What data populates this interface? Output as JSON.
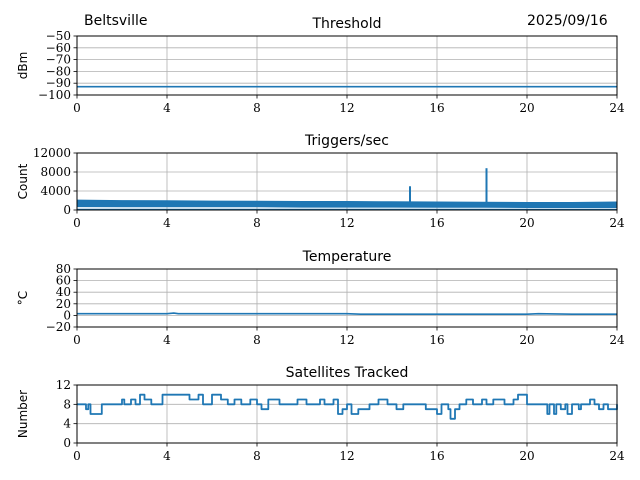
{
  "header": {
    "location": "Beltsville",
    "date": "2025/09/16"
  },
  "chart_data": [
    {
      "type": "line",
      "title": "Threshold",
      "xlabel": "",
      "ylabel": "dBm",
      "xlim": [
        0,
        24
      ],
      "ylim": [
        -100,
        -50
      ],
      "xticks": [
        0,
        4,
        8,
        12,
        16,
        20,
        24
      ],
      "yticks": [
        -100,
        -90,
        -80,
        -70,
        -60,
        -50
      ],
      "ytick_labels": [
        "−100",
        "−90",
        "−80",
        "−70",
        "−60",
        "−50"
      ],
      "grid": true,
      "series": [
        {
          "color": "#1f77b4",
          "x": [
            0,
            2,
            4,
            6,
            8,
            10,
            12,
            14,
            16,
            18,
            20,
            22,
            24
          ],
          "y": [
            -93,
            -93,
            -93,
            -93,
            -93,
            -93,
            -93,
            -93,
            -93,
            -93,
            -93,
            -93,
            -93
          ]
        }
      ]
    },
    {
      "type": "line",
      "title": "Triggers/sec",
      "xlabel": "",
      "ylabel": "Count",
      "xlim": [
        0,
        24
      ],
      "ylim": [
        0,
        12000
      ],
      "xticks": [
        0,
        4,
        8,
        12,
        16,
        20,
        24
      ],
      "yticks": [
        0,
        4000,
        8000,
        12000
      ],
      "ytick_labels": [
        "0",
        "4000",
        "8000",
        "12000"
      ],
      "grid": true,
      "band": {
        "x": [
          0,
          2,
          4,
          6,
          8,
          10,
          12,
          14,
          16,
          18,
          20,
          22,
          24
        ],
        "low": [
          700,
          650,
          650,
          650,
          650,
          600,
          600,
          600,
          550,
          550,
          500,
          500,
          500
        ],
        "high": [
          2100,
          2000,
          1950,
          1900,
          1850,
          1800,
          1800,
          1750,
          1700,
          1650,
          1600,
          1600,
          1700
        ]
      },
      "spikes": [
        {
          "x": 14.8,
          "y": 5000
        },
        {
          "x": 18.2,
          "y": 8800
        }
      ],
      "series": [
        {
          "color": "#1f77b4"
        }
      ]
    },
    {
      "type": "line",
      "title": "Temperature",
      "xlabel": "",
      "ylabel": "°C",
      "xlim": [
        0,
        24
      ],
      "ylim": [
        -20,
        80
      ],
      "xticks": [
        0,
        4,
        8,
        12,
        16,
        20,
        24
      ],
      "yticks": [
        -20,
        0,
        20,
        40,
        60,
        80
      ],
      "ytick_labels": [
        "−20",
        "0",
        "20",
        "40",
        "60",
        "80"
      ],
      "grid": true,
      "series": [
        {
          "color": "#1f77b4",
          "x": [
            0,
            2,
            4,
            4.3,
            4.5,
            6,
            8,
            10,
            12,
            12.6,
            13,
            16,
            18,
            20,
            20.5,
            22,
            24
          ],
          "y": [
            3,
            3,
            3,
            4,
            3,
            3,
            3,
            3,
            3,
            2,
            2,
            2,
            2,
            2,
            3,
            2,
            2
          ]
        }
      ]
    },
    {
      "type": "line",
      "title": "Satellites Tracked",
      "xlabel": "",
      "ylabel": "Number",
      "xlim": [
        0,
        24
      ],
      "ylim": [
        0,
        12
      ],
      "xticks": [
        0,
        4,
        8,
        12,
        16,
        20,
        24
      ],
      "yticks": [
        0,
        4,
        8,
        12
      ],
      "ytick_labels": [
        "0",
        "4",
        "8",
        "12"
      ],
      "grid": true,
      "series": [
        {
          "color": "#1f77b4",
          "step": true,
          "x": [
            0,
            0.4,
            0.5,
            0.6,
            1.1,
            1.2,
            2.0,
            2.1,
            2.4,
            2.6,
            2.8,
            3.0,
            3.3,
            3.8,
            4.5,
            5.0,
            5.4,
            5.6,
            6.0,
            6.4,
            6.7,
            7.0,
            7.3,
            7.7,
            8.0,
            8.2,
            8.5,
            9.0,
            9.8,
            10.2,
            10.8,
            11.0,
            11.4,
            11.6,
            11.8,
            12.0,
            12.2,
            12.5,
            13.0,
            13.4,
            13.8,
            14.2,
            14.5,
            14.9,
            15.5,
            16.0,
            16.2,
            16.5,
            16.6,
            16.8,
            17.0,
            17.3,
            17.6,
            18.0,
            18.2,
            18.5,
            19.0,
            19.4,
            19.6,
            20.0,
            20.8,
            20.9,
            21.0,
            21.2,
            21.3,
            21.5,
            21.7,
            21.8,
            22.0,
            22.3,
            22.4,
            22.6,
            22.8,
            23.0,
            23.2,
            23.4,
            23.6,
            24.0
          ],
          "y": [
            8,
            7,
            8,
            6,
            8,
            8,
            9,
            8,
            9,
            8,
            10,
            9,
            8,
            10,
            10,
            9,
            10,
            8,
            10,
            9,
            8,
            9,
            8,
            9,
            8,
            7,
            9,
            8,
            9,
            8,
            9,
            8,
            9,
            6,
            7,
            8,
            6,
            7,
            8,
            9,
            8,
            7,
            8,
            8,
            7,
            6,
            8,
            7,
            5,
            7,
            8,
            9,
            8,
            9,
            8,
            9,
            8,
            9,
            10,
            8,
            8,
            6,
            8,
            6,
            8,
            7,
            8,
            6,
            8,
            7,
            8,
            8,
            9,
            8,
            7,
            8,
            7,
            8
          ]
        }
      ]
    }
  ]
}
